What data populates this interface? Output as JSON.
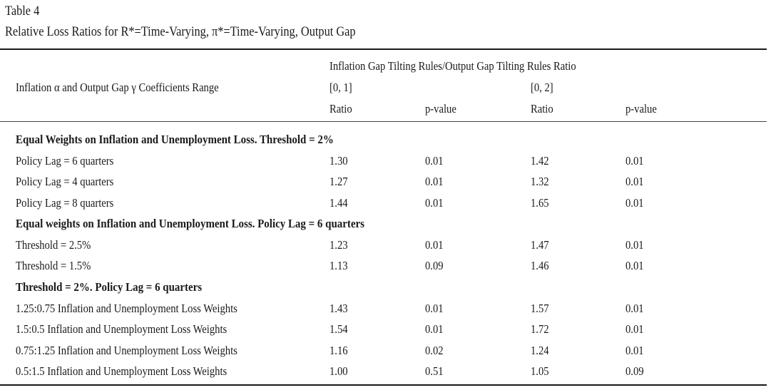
{
  "table_label": "Table 4",
  "table_title": "Relative Loss Ratios for R*=Time-Varying, π*=Time-Varying, Output Gap",
  "header": {
    "row_label": "Inflation α and Output Gap γ Coefficients Range",
    "group_label": "Inflation Gap Tilting Rules/Output Gap Tilting Rules Ratio",
    "range_1": "[0, 1]",
    "range_2": "[0, 2]",
    "col_ratio_1": "Ratio",
    "col_pvalue_1": "p-value",
    "col_ratio_2": "Ratio",
    "col_pvalue_2": "p-value"
  },
  "sections": [
    {
      "title": "Equal Weights on Inflation and Unemployment Loss. Threshold = 2%",
      "rows": [
        {
          "label": "Policy Lag = 6 quarters",
          "ratio1": "1.30",
          "p1": "0.01",
          "ratio2": "1.42",
          "p2": "0.01"
        },
        {
          "label": "Policy Lag = 4 quarters",
          "ratio1": "1.27",
          "p1": "0.01",
          "ratio2": "1.32",
          "p2": "0.01"
        },
        {
          "label": "Policy Lag = 8 quarters",
          "ratio1": "1.44",
          "p1": "0.01",
          "ratio2": "1.65",
          "p2": "0.01"
        }
      ]
    },
    {
      "title": "Equal weights on Inflation and Unemployment Loss. Policy Lag = 6 quarters",
      "rows": [
        {
          "label": "Threshold = 2.5%",
          "ratio1": "1.23",
          "p1": "0.01",
          "ratio2": "1.47",
          "p2": "0.01"
        },
        {
          "label": "Threshold = 1.5%",
          "ratio1": "1.13",
          "p1": "0.09",
          "ratio2": "1.46",
          "p2": "0.01"
        }
      ]
    },
    {
      "title": "Threshold = 2%. Policy Lag = 6 quarters",
      "rows": [
        {
          "label": "1.25:0.75 Inflation and Unemployment Loss Weights",
          "ratio1": "1.43",
          "p1": "0.01",
          "ratio2": "1.57",
          "p2": "0.01"
        },
        {
          "label": "1.5:0.5 Inflation and Unemployment Loss Weights",
          "ratio1": "1.54",
          "p1": "0.01",
          "ratio2": "1.72",
          "p2": "0.01"
        },
        {
          "label": "0.75:1.25 Inflation and Unemployment Loss Weights",
          "ratio1": "1.16",
          "p1": "0.02",
          "ratio2": "1.24",
          "p2": "0.01"
        },
        {
          "label": "0.5:1.5 Inflation and Unemployment Loss Weights",
          "ratio1": "1.00",
          "p1": "0.51",
          "ratio2": "1.05",
          "p2": "0.09"
        }
      ]
    }
  ]
}
